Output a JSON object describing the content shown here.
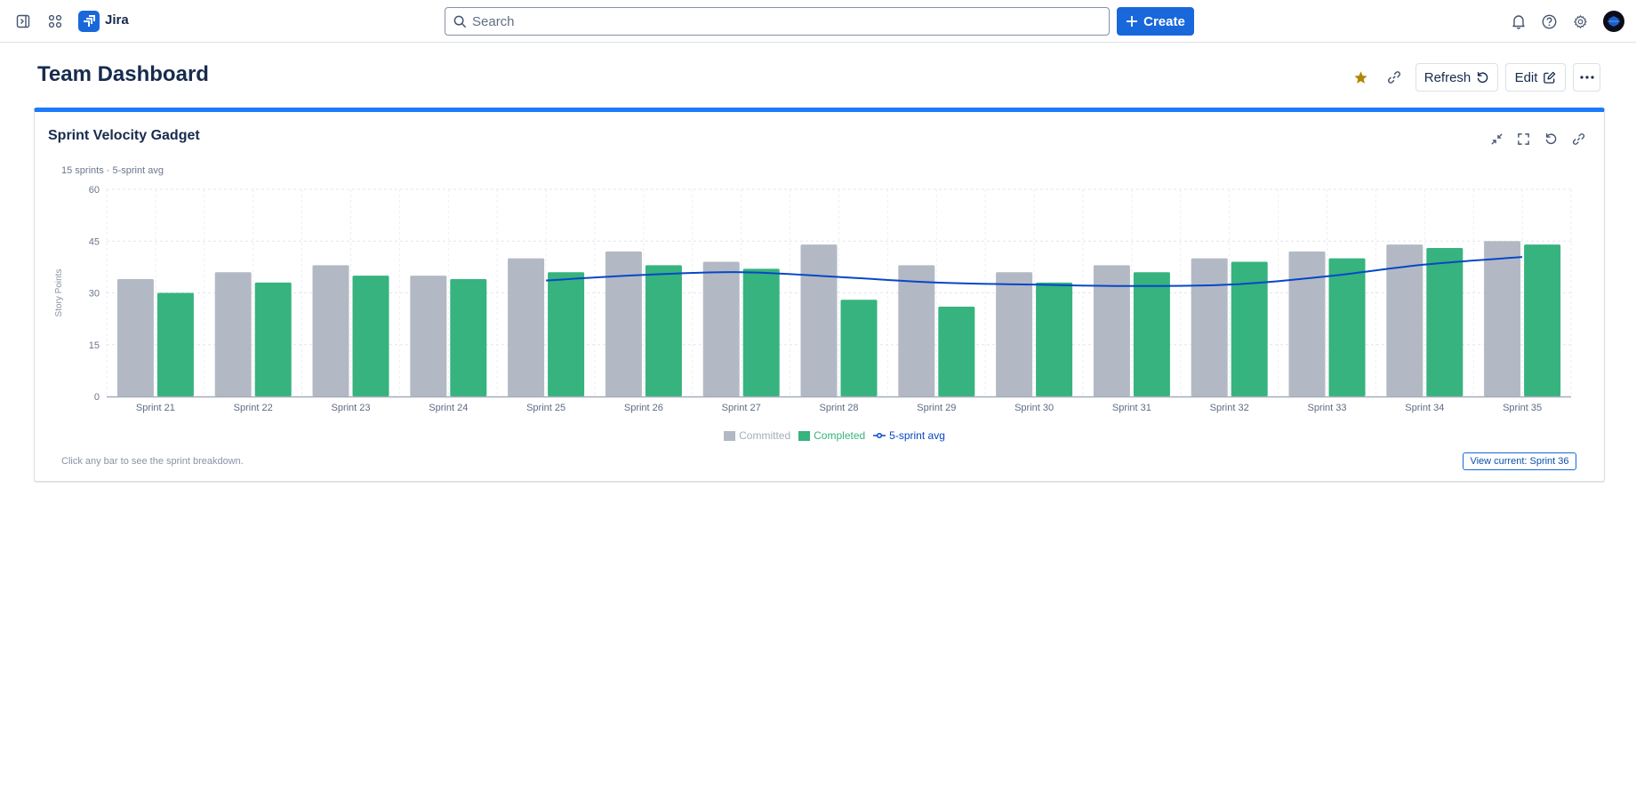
{
  "topnav": {
    "app_name": "Jira",
    "search_placeholder": "Search",
    "create_label": "Create",
    "icons": [
      "sidebar-toggle-icon",
      "app-switcher-icon",
      "jira-logo-icon",
      "search-icon",
      "bell-icon",
      "help-icon",
      "gear-icon",
      "avatar"
    ]
  },
  "page": {
    "title": "Team Dashboard",
    "refresh_label": "Refresh",
    "edit_label": "Edit",
    "star_color": "#b38600"
  },
  "gadget": {
    "title": "Sprint Velocity Gadget",
    "subtitle": "15 sprints · 5-sprint avg",
    "footer_note": "Click any bar to see the sprint breakdown.",
    "current_button": "View current: Sprint 36",
    "accent_color": "#1d7afc"
  },
  "chart_data": {
    "type": "bar",
    "title": "15 sprints · 5-sprint avg",
    "xlabel": "",
    "ylabel": "Story Points",
    "ylim": [
      0,
      60
    ],
    "yticks": [
      0,
      15,
      30,
      45,
      60
    ],
    "grid": true,
    "legend_position": "bottom",
    "categories": [
      "Sprint 21",
      "Sprint 22",
      "Sprint 23",
      "Sprint 24",
      "Sprint 25",
      "Sprint 26",
      "Sprint 27",
      "Sprint 28",
      "Sprint 29",
      "Sprint 30",
      "Sprint 31",
      "Sprint 32",
      "Sprint 33",
      "Sprint 34",
      "Sprint 35"
    ],
    "series": [
      {
        "name": "Committed",
        "type": "bar",
        "color": "#b3b9c4",
        "values": [
          34,
          36,
          38,
          35,
          40,
          42,
          39,
          44,
          38,
          36,
          38,
          40,
          42,
          44,
          45
        ]
      },
      {
        "name": "Completed",
        "type": "bar",
        "color": "#36b37e",
        "values": [
          30,
          33,
          35,
          34,
          36,
          38,
          37,
          28,
          26,
          33,
          36,
          39,
          40,
          43,
          44
        ]
      },
      {
        "name": "5-sprint avg",
        "type": "line",
        "color": "#0747c7",
        "values": [
          null,
          null,
          null,
          null,
          33.6,
          35.2,
          36.0,
          34.6,
          33.0,
          32.4,
          32.0,
          32.4,
          34.8,
          38.2,
          40.4
        ]
      }
    ]
  }
}
